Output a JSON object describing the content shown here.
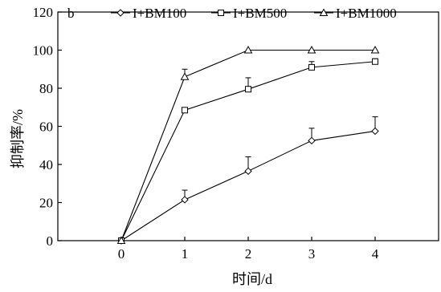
{
  "panel_label": "b",
  "chart_data": {
    "type": "line",
    "title": "",
    "xlabel": "时间/d",
    "ylabel": "抑制率/%",
    "x": [
      0,
      1,
      2,
      3,
      4
    ],
    "xlim": [
      -1,
      5
    ],
    "ylim": [
      0,
      120
    ],
    "x_ticks": [
      "0",
      "1",
      "2",
      "3",
      "4"
    ],
    "y_ticks": [
      "0",
      "20",
      "40",
      "60",
      "80",
      "100",
      "120"
    ],
    "grid": false,
    "legend_position": "top",
    "series": [
      {
        "name": "I+BM100",
        "marker": "diamond",
        "values": [
          0,
          21.5,
          36.5,
          52.5,
          57.5
        ],
        "errors": [
          0,
          5,
          7.5,
          6.5,
          7.5
        ]
      },
      {
        "name": "I+BM500",
        "marker": "square",
        "values": [
          0,
          68.5,
          79.5,
          91.0,
          94.0
        ],
        "errors": [
          0,
          0,
          6,
          3,
          1.5
        ]
      },
      {
        "name": "I+BM1000",
        "marker": "triangle",
        "values": [
          0,
          86.0,
          100.0,
          100.0,
          100.0
        ],
        "errors": [
          0,
          4,
          0,
          0,
          0
        ]
      }
    ]
  }
}
